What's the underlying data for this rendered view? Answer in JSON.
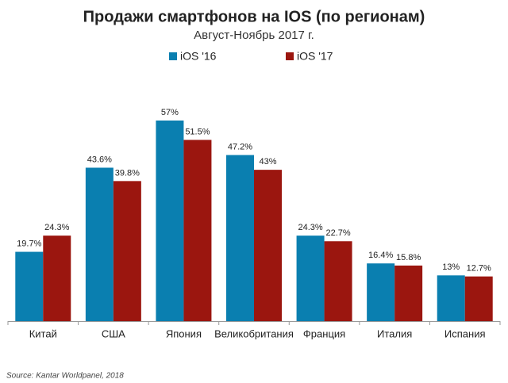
{
  "chart_data": {
    "type": "bar",
    "title": "Продажи смартфонов на IOS (по регионам)",
    "subtitle": "Август-Ноябрь 2017 г.",
    "source": "Source: Kantar Worldpanel, 2018",
    "categories": [
      "Китай",
      "США",
      "Япония",
      "Великобритания",
      "Франция",
      "Италия",
      "Испания"
    ],
    "series": [
      {
        "name": "iOS '16",
        "color": "#0a7fb0",
        "values": [
          19.7,
          43.6,
          57,
          47.2,
          24.3,
          16.4,
          13
        ],
        "value_labels": [
          "19.7%",
          "43.6%",
          "57%",
          "47.2%",
          "24.3%",
          "16.4%",
          "13%"
        ]
      },
      {
        "name": "iOS '17",
        "color": "#9b160f",
        "values": [
          24.3,
          39.8,
          51.5,
          43,
          22.7,
          15.8,
          12.7
        ],
        "value_labels": [
          "24.3%",
          "39.8%",
          "51.5%",
          "43%",
          "22.7%",
          "15.8%",
          "12.7%"
        ]
      }
    ]
  }
}
